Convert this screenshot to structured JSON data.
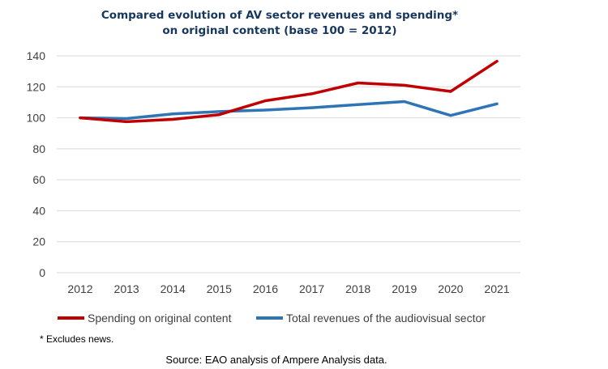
{
  "chart_data": {
    "type": "line",
    "title_lines": [
      "Compared evolution of AV sector revenues and spending*",
      "on original content (base 100 = 2012)"
    ],
    "x": [
      "2012",
      "2013",
      "2014",
      "2015",
      "2016",
      "2017",
      "2018",
      "2019",
      "2020",
      "2021"
    ],
    "ylim": [
      0,
      140
    ],
    "yticks": [
      "0",
      "20",
      "40",
      "60",
      "80",
      "100",
      "120",
      "140"
    ],
    "grid": true,
    "legend_position": "bottom",
    "series": [
      {
        "name": "Spending on original content",
        "color": "#c00000",
        "values": [
          100,
          97.5,
          99,
          102,
          111,
          115.5,
          122.5,
          121,
          117,
          136.5
        ]
      },
      {
        "name": "Total revenues of the audiovisual sector",
        "color": "#2e75b6",
        "values": [
          100,
          99.5,
          102.5,
          104,
          105,
          106.5,
          108.5,
          110.5,
          101.5,
          109
        ]
      }
    ],
    "footnote": "* Excludes news.",
    "source": "Source: EAO analysis of Ampere Analysis data."
  }
}
